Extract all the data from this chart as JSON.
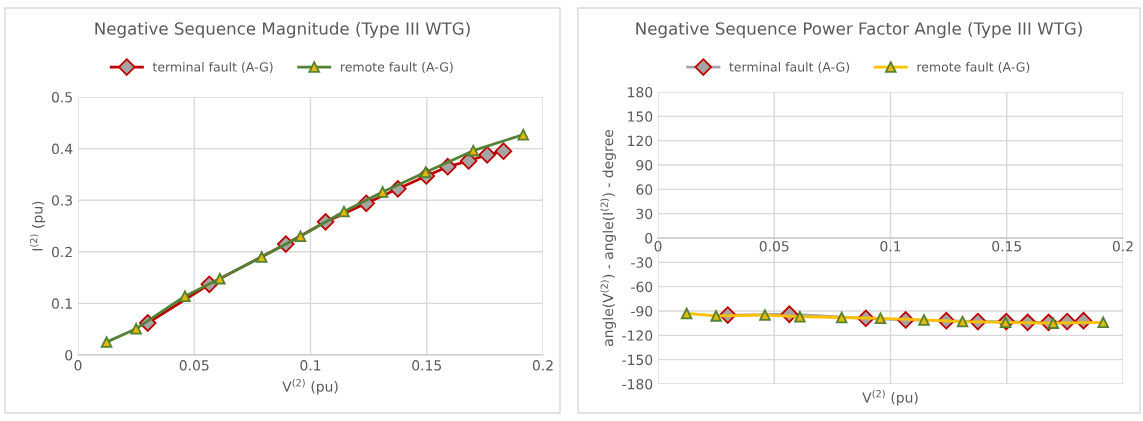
{
  "chart_data": [
    {
      "type": "line",
      "title": "Negative Sequence Magnitude (Type III WTG)",
      "xlabel": "V$^{(2)}$ (pu)",
      "ylabel": "I$^{(2)}$ (pu)",
      "xlim": [
        0,
        0.2
      ],
      "xticks": [
        0,
        0.05,
        0.1,
        0.15,
        0.2
      ],
      "ylim": [
        0,
        0.5
      ],
      "yticks": [
        0,
        0.1,
        0.2,
        0.3,
        0.4,
        0.5
      ],
      "grid": true,
      "legend": "top",
      "series": [
        {
          "name": "terminal fault (A-G)",
          "color": "#c00000",
          "marker": "diamond",
          "x": [
            0.03,
            0.0565,
            0.0894,
            0.1065,
            0.124,
            0.1376,
            0.1498,
            0.159,
            0.168,
            0.176,
            0.183
          ],
          "values": [
            0.062,
            0.137,
            0.215,
            0.258,
            0.294,
            0.322,
            0.347,
            0.365,
            0.376,
            0.388,
            0.395
          ]
        },
        {
          "name": "remote fault (A-G)",
          "color": "#548235",
          "marker": "triangle",
          "x": [
            0.0123,
            0.025,
            0.046,
            0.061,
            0.079,
            0.0957,
            0.1144,
            0.131,
            0.1495,
            0.17,
            0.1915
          ],
          "values": [
            0.025,
            0.051,
            0.114,
            0.148,
            0.19,
            0.23,
            0.278,
            0.316,
            0.354,
            0.396,
            0.427
          ]
        }
      ]
    },
    {
      "type": "line",
      "title": "Negative Sequence Power Factor Angle (Type III WTG)",
      "xlabel": "V$^{(2)}$ (pu)",
      "ylabel": "angle(V$^{(2)}$) - angle(I$^{(2)}$) - degree",
      "xlim": [
        0,
        0.2
      ],
      "xticks": [
        0,
        0.05,
        0.1,
        0.15,
        0.2
      ],
      "ylim": [
        -180,
        180
      ],
      "yticks": [
        -180,
        -150,
        -120,
        -90,
        -60,
        -30,
        0,
        30,
        60,
        90,
        120,
        150,
        180
      ],
      "grid": true,
      "legend": "top",
      "series": [
        {
          "name": "terminal fault (A-G)",
          "color": "#a5a5a5",
          "marker": "diamond",
          "x": [
            0.03,
            0.0565,
            0.0894,
            0.1065,
            0.124,
            0.1376,
            0.1498,
            0.159,
            0.168,
            0.176,
            0.183
          ],
          "values": [
            -95,
            -94,
            -99,
            -101,
            -102,
            -103,
            -103,
            -104,
            -104,
            -103,
            -102
          ]
        },
        {
          "name": "remote fault (A-G)",
          "color": "#ffc000",
          "marker": "triangle",
          "x": [
            0.0123,
            0.025,
            0.046,
            0.061,
            0.079,
            0.0957,
            0.1144,
            0.131,
            0.1495,
            0.17,
            0.1915
          ],
          "values": [
            -93,
            -96,
            -95,
            -97,
            -98,
            -99,
            -101,
            -103,
            -104,
            -105,
            -104
          ]
        }
      ]
    }
  ]
}
